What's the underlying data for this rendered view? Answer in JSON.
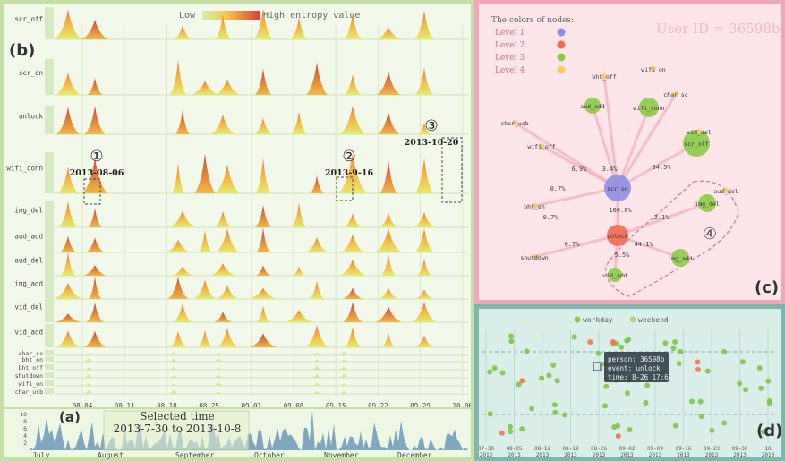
{
  "panel_b": {
    "label": "(b)",
    "legend_low": "Low",
    "legend_high": "High entropy value",
    "rows": [
      "scr_off",
      "scr_on",
      "unlock",
      "wifi_conn",
      "img_del",
      "aud_add",
      "aud_del",
      "img_add",
      "vid_del",
      "vid_add",
      "char_sc",
      "bht_on",
      "bht_off",
      "shutdown",
      "wifi_on",
      "char_usb"
    ],
    "x_ticks": [
      "08-04",
      "08-11",
      "08-18",
      "08-25",
      "09-01",
      "09-08",
      "09-15",
      "09-22",
      "09-29",
      "10-06"
    ],
    "annotations": [
      {
        "num": "①",
        "date": "2013-08-06"
      },
      {
        "num": "②",
        "date": "2013-9-16"
      },
      {
        "num": "③",
        "date": "2013-10-20"
      }
    ]
  },
  "panel_a": {
    "label": "(a)",
    "selected_title": "Selected time",
    "selected_range": "2013-7-30 to 2013-10-8",
    "months": [
      "July",
      "August",
      "September",
      "October",
      "November",
      "December"
    ],
    "y_ticks": [
      "10",
      "8",
      "6",
      "4",
      "2"
    ]
  },
  "panel_c": {
    "label": "(c)",
    "user_id": "User ID = 36598b",
    "legend_title": "The colors of nodes:",
    "levels": [
      {
        "name": "Level 1",
        "color": "#8f8ee6"
      },
      {
        "name": "Level 2",
        "color": "#f06a4f"
      },
      {
        "name": "Level 3",
        "color": "#8ccb49"
      },
      {
        "name": "Level 4",
        "color": "#f7c864"
      }
    ],
    "nodes": [
      "scr_on",
      "unlock",
      "scr_off",
      "aud_add",
      "wifi_conn",
      "wifi_on",
      "bht_off",
      "char_sc",
      "vid_del",
      "char_usb",
      "wifi_off",
      "aud_del",
      "img_del",
      "img_add",
      "vid_add",
      "shutdown",
      "bht_on"
    ],
    "edge_labels": [
      "6.9%",
      "3.4%",
      "34.5%",
      "0.7%",
      "100.0%",
      "0.7%",
      "2.1%",
      "0.7%",
      "5.5%",
      "44.1%"
    ],
    "group_label": "④"
  },
  "panel_d": {
    "label": "(d)",
    "legend_workday": "workday",
    "legend_weekend": "weekend",
    "tooltip": [
      "person: 36598b",
      "event: unlock",
      "time: 8-26 17:6"
    ],
    "x_ticks": [
      "07-30",
      "08-05",
      "08-12",
      "08-19",
      "08-26",
      "09-02",
      "09-09",
      "09-16",
      "09-23",
      "09-30",
      "10"
    ],
    "x_years": [
      "2013",
      "2013",
      "2013",
      "2013",
      "2013",
      "2013",
      "2013",
      "2013",
      "2013",
      "2013",
      "2013"
    ]
  }
}
